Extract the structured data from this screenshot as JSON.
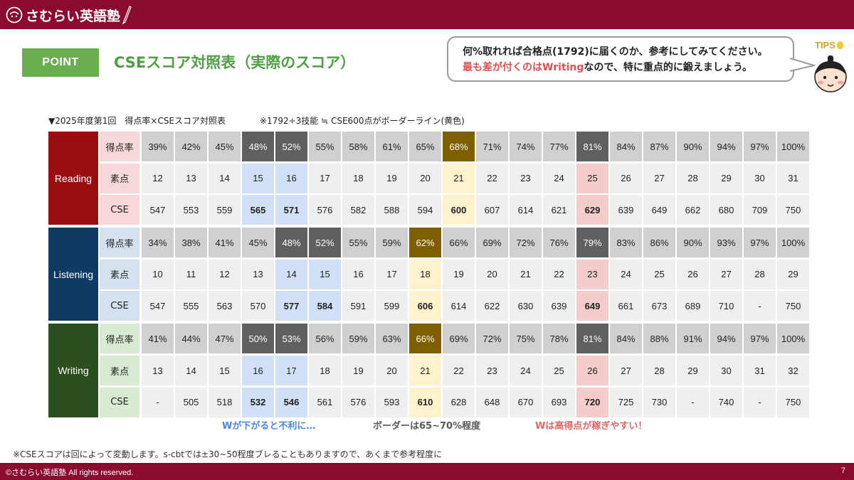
{
  "header": {
    "logo_text": "さむらい英語塾"
  },
  "point_label": "POINT",
  "title": "CSEスコア対照表（実際のスコア）",
  "bubble": {
    "line1": "何%取れれば合格点(1792)に届くのか、参考にしてみてください。",
    "line2_red": "最も差が付くのはWriting",
    "line2_rest": "なので、特に重点的に鍛えましょう。"
  },
  "tips_label": "TIPS",
  "caption_left": "▼2025年度第1回　得点率×CSEスコア対照表",
  "caption_right": "※1792÷3技能 ≒ CSE600点がボーダーライン(黄色)",
  "colors": {
    "brand": "#8b0b2f",
    "reading": "#9b0e10",
    "listening": "#0f3a64",
    "writing": "#2b4f1f",
    "highlight_blue": "#cfe0f7",
    "highlight_yellow": "#fff2cc",
    "highlight_pink": "#f4cccc",
    "dark_cell": "#606060",
    "gold_cell": "#7d5f00",
    "grey_cell": "#d0d0d0",
    "light_cell": "#efefef",
    "note_blue": "#4a86e8",
    "note_red": "#e06666"
  },
  "sections": [
    {
      "name": "Reading",
      "rows": [
        {
          "label": "得点率",
          "cells": [
            "39%",
            "42%",
            "45%",
            "48%",
            "52%",
            "55%",
            "58%",
            "61%",
            "65%",
            "68%",
            "71%",
            "74%",
            "77%",
            "81%",
            "84%",
            "87%",
            "90%",
            "94%",
            "97%",
            "100%"
          ]
        },
        {
          "label": "素点",
          "cells": [
            "12",
            "13",
            "14",
            "15",
            "16",
            "17",
            "18",
            "19",
            "20",
            "21",
            "22",
            "23",
            "24",
            "25",
            "26",
            "27",
            "28",
            "29",
            "30",
            "31"
          ]
        },
        {
          "label": "CSE",
          "cells": [
            "547",
            "553",
            "559",
            "565",
            "571",
            "576",
            "582",
            "588",
            "594",
            "600",
            "607",
            "614",
            "621",
            "629",
            "639",
            "649",
            "662",
            "680",
            "709",
            "750"
          ]
        }
      ]
    },
    {
      "name": "Listening",
      "rows": [
        {
          "label": "得点率",
          "cells": [
            "34%",
            "38%",
            "41%",
            "45%",
            "48%",
            "52%",
            "55%",
            "59%",
            "62%",
            "66%",
            "69%",
            "72%",
            "76%",
            "79%",
            "83%",
            "86%",
            "90%",
            "93%",
            "97%",
            "100%"
          ]
        },
        {
          "label": "素点",
          "cells": [
            "10",
            "11",
            "12",
            "13",
            "14",
            "15",
            "16",
            "17",
            "18",
            "19",
            "20",
            "21",
            "22",
            "23",
            "24",
            "25",
            "26",
            "27",
            "28",
            "29"
          ]
        },
        {
          "label": "CSE",
          "cells": [
            "547",
            "555",
            "563",
            "570",
            "577",
            "584",
            "591",
            "599",
            "606",
            "614",
            "622",
            "630",
            "639",
            "649",
            "661",
            "673",
            "689",
            "710",
            "-",
            "750"
          ]
        }
      ]
    },
    {
      "name": "Writing",
      "rows": [
        {
          "label": "得点率",
          "cells": [
            "41%",
            "44%",
            "47%",
            "50%",
            "53%",
            "56%",
            "59%",
            "63%",
            "66%",
            "69%",
            "72%",
            "75%",
            "78%",
            "81%",
            "84%",
            "88%",
            "91%",
            "94%",
            "97%",
            "100%"
          ]
        },
        {
          "label": "素点",
          "cells": [
            "13",
            "14",
            "15",
            "16",
            "17",
            "18",
            "19",
            "20",
            "21",
            "22",
            "23",
            "24",
            "25",
            "26",
            "27",
            "28",
            "29",
            "30",
            "31",
            "32"
          ]
        },
        {
          "label": "CSE",
          "cells": [
            "-",
            "505",
            "518",
            "532",
            "546",
            "561",
            "576",
            "593",
            "610",
            "628",
            "648",
            "670",
            "693",
            "720",
            "725",
            "730",
            "-",
            "740",
            "-",
            "750"
          ]
        }
      ]
    }
  ],
  "notes": {
    "blue": "Wが下がると不利に…",
    "grey": "ボーダーは65~70%程度",
    "red": "Wは高得点が稼ぎやすい！"
  },
  "footnote": "※CSEスコアは回によって変動します。s-cbtでは±30~50程度ブレることもありますので、あくまで参考程度に",
  "footer": {
    "copyright": "©さむらい英語塾 All rights reserved.",
    "page_number": "7"
  }
}
